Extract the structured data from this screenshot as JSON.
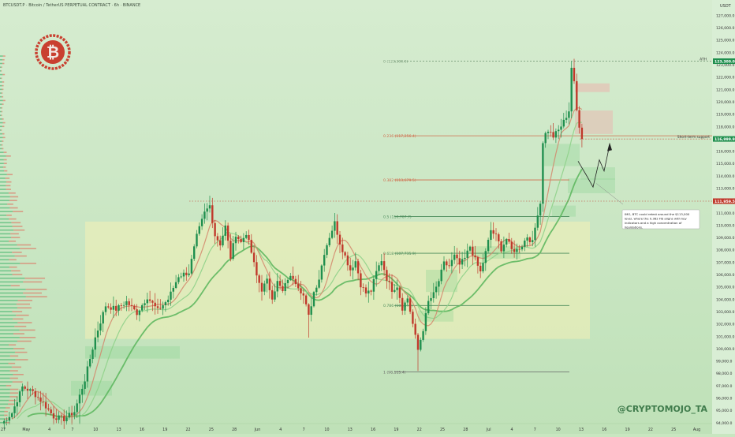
{
  "header": {
    "symbol_title": "BTCUSDT.P · Bitcoin / TetherUS PERPETUAL CONTRACT · 6h · BINANCE",
    "currency": "USDT"
  },
  "chart_data": {
    "type": "candlestick",
    "timeframe": "6h",
    "y_axis_unit": "USDT",
    "ylim": [
      94000,
      128000
    ],
    "y_ticks": [
      94000,
      95000,
      96000,
      97000,
      98000,
      99000,
      100000,
      101000,
      102000,
      103000,
      104000,
      105000,
      106000,
      107000,
      108000,
      109000,
      110000,
      111000,
      112000,
      113000,
      114000,
      115000,
      116000,
      117000,
      118000,
      119000,
      120000,
      121000,
      122000,
      123000,
      124000,
      125000,
      126000,
      127000
    ],
    "x_tick_labels": [
      "27",
      "May",
      "4",
      "7",
      "10",
      "13",
      "16",
      "19",
      "22",
      "25",
      "28",
      "Jun",
      "4",
      "7",
      "10",
      "13",
      "16",
      "19",
      "22",
      "25",
      "28",
      "Jul",
      "4",
      "7",
      "10",
      "13",
      "16",
      "19",
      "22",
      "25",
      "Aug"
    ],
    "price_tags": [
      {
        "value": 123300.0,
        "label": "123,300.0"
      },
      {
        "value": 116999.9,
        "label": "116,999.9"
      },
      {
        "value": 111959.5,
        "label": "111,959.5"
      }
    ],
    "fibonacci": [
      {
        "level": "0",
        "price": 123300.0,
        "label": "0 (123,300.0)",
        "color": "#7a9c7a"
      },
      {
        "level": "0.236",
        "price": 117256.4,
        "label": "0.236 (117,256.4)",
        "color": "#d06a4a"
      },
      {
        "level": "0.382",
        "price": 113679.5,
        "label": "0.382 (113,679.5)",
        "color": "#d06a4a"
      },
      {
        "level": "0.5",
        "price": 110707.7,
        "label": "0.5 (110,707.7)",
        "color": "#4a8a5a"
      },
      {
        "level": "0.618",
        "price": 107735.9,
        "label": "0.618 (107,735.9)",
        "color": "#4a8a5a"
      },
      {
        "level": "0.786",
        "price": 103504.0,
        "label": "0.786 (103,5..0)",
        "color": "#4a8a5a"
      },
      {
        "level": "1",
        "price": 98115.4,
        "label": "1 (98,115.4)",
        "color": "#666666"
      }
    ],
    "annotations": {
      "ath_label": "ATH",
      "short_term_support": "Short-term support",
      "callout": "IMO, BTC could retest around the $113,000 level, where the 0.382 Fib aligns with key indicators and a high concentration of liquidations.",
      "watermark": "@CRYPTOMOJO_TA"
    },
    "colors": {
      "up": "#1f8f4e",
      "down": "#c0392b",
      "ema_fast": "#d4866b",
      "ema_mid": "#8fd18a",
      "ema_slow": "#5fb860",
      "range_box": "#f4f1b6",
      "background_top": "#d6ecd0",
      "background_bottom": "#bfe1b8"
    },
    "range_box": {
      "top_price": 110300,
      "bottom_price": 100800
    },
    "path": [
      [
        0,
        93900
      ],
      [
        4,
        94800
      ],
      [
        8,
        96900
      ],
      [
        12,
        96500
      ],
      [
        16,
        95600
      ],
      [
        20,
        94500
      ],
      [
        24,
        94300
      ],
      [
        28,
        94900
      ],
      [
        32,
        97500
      ],
      [
        36,
        100900
      ],
      [
        40,
        103500
      ],
      [
        44,
        103200
      ],
      [
        48,
        103800
      ],
      [
        52,
        102900
      ],
      [
        56,
        104200
      ],
      [
        60,
        103100
      ],
      [
        64,
        104000
      ],
      [
        68,
        105900
      ],
      [
        72,
        106200
      ],
      [
        75,
        109100
      ],
      [
        78,
        111000
      ],
      [
        80,
        111600
      ],
      [
        82,
        109200
      ],
      [
        84,
        108500
      ],
      [
        86,
        109900
      ],
      [
        88,
        107400
      ],
      [
        90,
        109300
      ],
      [
        92,
        108600
      ],
      [
        94,
        109400
      ],
      [
        96,
        107800
      ],
      [
        98,
        105900
      ],
      [
        100,
        104800
      ],
      [
        102,
        105500
      ],
      [
        104,
        104200
      ],
      [
        106,
        105400
      ],
      [
        108,
        104600
      ],
      [
        110,
        105700
      ],
      [
        112,
        105800
      ],
      [
        114,
        105100
      ],
      [
        116,
        104300
      ],
      [
        118,
        102600
      ],
      [
        120,
        104600
      ],
      [
        122,
        105700
      ],
      [
        124,
        107800
      ],
      [
        126,
        109100
      ],
      [
        128,
        110200
      ],
      [
        130,
        108600
      ],
      [
        132,
        107500
      ],
      [
        134,
        106400
      ],
      [
        136,
        107100
      ],
      [
        138,
        105200
      ],
      [
        140,
        104500
      ],
      [
        142,
        104700
      ],
      [
        144,
        106200
      ],
      [
        146,
        107200
      ],
      [
        148,
        105700
      ],
      [
        150,
        104800
      ],
      [
        152,
        105100
      ],
      [
        154,
        103300
      ],
      [
        156,
        104100
      ],
      [
        158,
        102000
      ],
      [
        160,
        99900
      ],
      [
        162,
        101600
      ],
      [
        164,
        103800
      ],
      [
        166,
        104400
      ],
      [
        168,
        105500
      ],
      [
        170,
        106900
      ],
      [
        172,
        106700
      ],
      [
        174,
        107500
      ],
      [
        176,
        106800
      ],
      [
        178,
        107300
      ],
      [
        180,
        108300
      ],
      [
        182,
        107200
      ],
      [
        184,
        106200
      ],
      [
        186,
        107800
      ],
      [
        188,
        109600
      ],
      [
        190,
        109100
      ],
      [
        192,
        108100
      ],
      [
        194,
        108900
      ],
      [
        196,
        108000
      ],
      [
        198,
        108000
      ],
      [
        200,
        108400
      ],
      [
        202,
        109100
      ],
      [
        204,
        108600
      ],
      [
        206,
        111000
      ],
      [
        207,
        111800
      ],
      [
        208,
        116800
      ],
      [
        209,
        117400
      ],
      [
        210,
        117700
      ],
      [
        212,
        117200
      ],
      [
        214,
        117700
      ],
      [
        216,
        118400
      ],
      [
        218,
        119300
      ],
      [
        219,
        122800
      ],
      [
        220,
        121500
      ],
      [
        221,
        119300
      ],
      [
        222,
        118100
      ],
      [
        223,
        116999
      ]
    ]
  }
}
